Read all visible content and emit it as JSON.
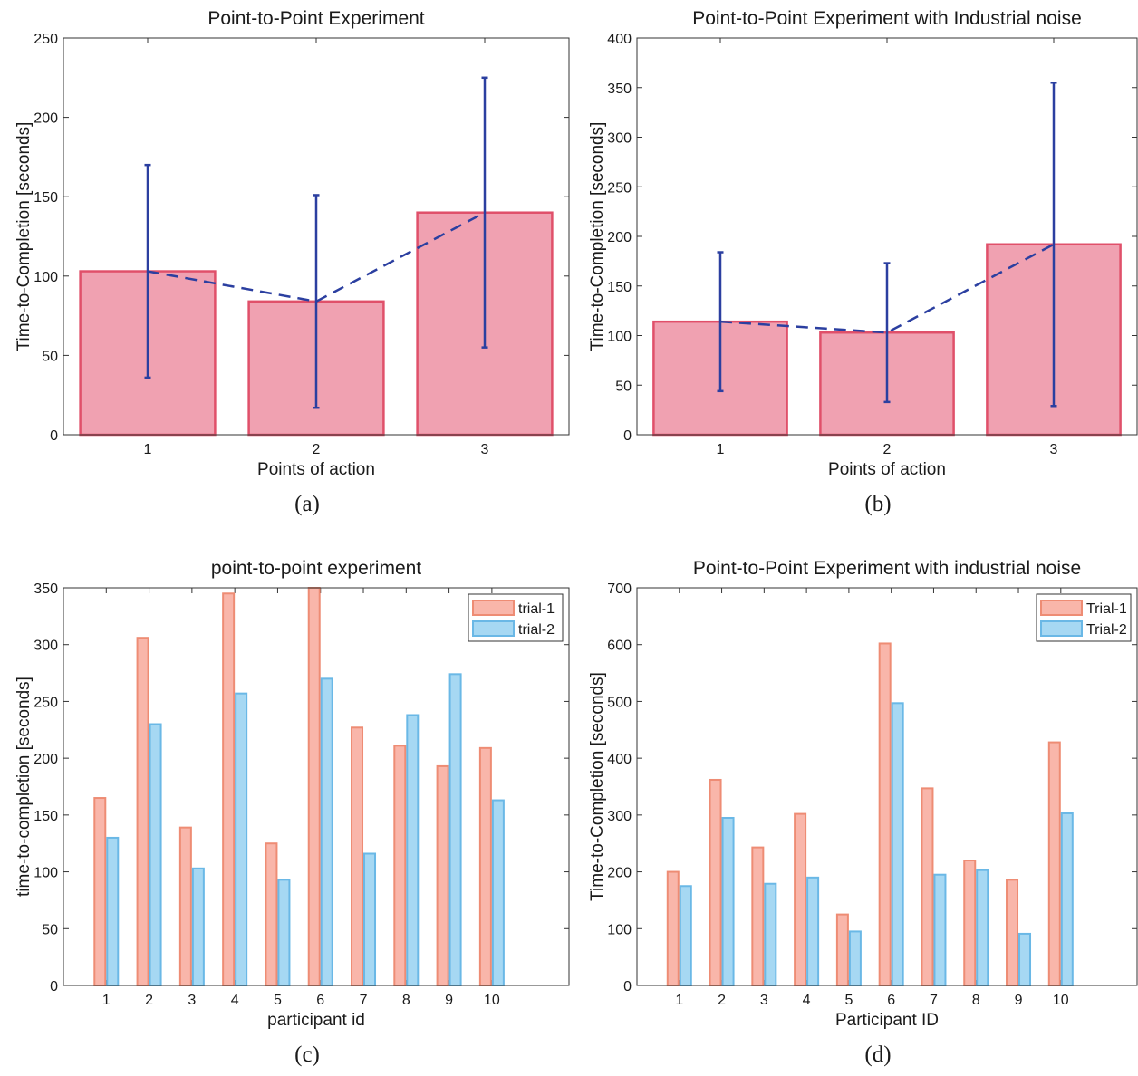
{
  "chart_data": [
    {
      "type": "bar",
      "panel": "(a)",
      "title": "Point-to-Point Experiment",
      "xlabel": "Points of action",
      "ylabel": "Time-to-Completion [seconds]",
      "categories": [
        "1",
        "2",
        "3"
      ],
      "values": [
        103,
        84,
        140
      ],
      "error_low": [
        36,
        17,
        55
      ],
      "error_high": [
        170,
        151,
        225
      ],
      "mean_line": true,
      "ylim": [
        0,
        250
      ],
      "yticks": [
        0,
        50,
        100,
        150,
        200,
        250
      ],
      "bar_color": "#f0a1b1",
      "bar_edge": "#e0506a",
      "error_color": "#2b3fa0"
    },
    {
      "type": "bar",
      "panel": "(b)",
      "title": "Point-to-Point Experiment with Industrial noise",
      "xlabel": "Points of action",
      "ylabel": "Time-to-Completion [seconds]",
      "categories": [
        "1",
        "2",
        "3"
      ],
      "values": [
        114,
        103,
        192
      ],
      "error_low": [
        44,
        33,
        29
      ],
      "error_high": [
        184,
        173,
        355
      ],
      "mean_line": true,
      "ylim": [
        0,
        400
      ],
      "yticks": [
        0,
        50,
        100,
        150,
        200,
        250,
        300,
        350,
        400
      ],
      "bar_color": "#f0a1b1",
      "bar_edge": "#e0506a",
      "error_color": "#2b3fa0"
    },
    {
      "type": "bar",
      "panel": "(c)",
      "title": "point-to-point experiment",
      "xlabel": "participant id",
      "ylabel": "time-to-completion [seconds]",
      "categories": [
        "1",
        "2",
        "3",
        "4",
        "5",
        "6",
        "7",
        "8",
        "9",
        "10"
      ],
      "series": [
        {
          "name": "trial-1",
          "values": [
            165,
            306,
            139,
            345,
            125,
            350,
            227,
            211,
            193,
            209
          ]
        },
        {
          "name": "trial-2",
          "values": [
            130,
            230,
            103,
            257,
            93,
            270,
            116,
            238,
            274,
            163
          ]
        }
      ],
      "ylim": [
        0,
        350
      ],
      "yticks": [
        0,
        50,
        100,
        150,
        200,
        250,
        300,
        350
      ],
      "legend": "top-right"
    },
    {
      "type": "bar",
      "panel": "(d)",
      "title": "Point-to-Point Experiment with industrial noise",
      "xlabel": "Participant ID",
      "ylabel": "Time-to-Completion [seconds]",
      "categories": [
        "1",
        "2",
        "3",
        "4",
        "5",
        "6",
        "7",
        "8",
        "9",
        "10"
      ],
      "series": [
        {
          "name": "Trial-1",
          "values": [
            200,
            362,
            243,
            302,
            125,
            602,
            347,
            220,
            186,
            428
          ]
        },
        {
          "name": "Trial-2",
          "values": [
            175,
            295,
            179,
            190,
            95,
            497,
            195,
            203,
            91,
            303
          ]
        }
      ],
      "ylim": [
        0,
        700
      ],
      "yticks": [
        0,
        100,
        200,
        300,
        400,
        500,
        600,
        700
      ],
      "legend": "top-right"
    }
  ],
  "colors": {
    "trial1_fill": "#f9b6aa",
    "trial1_edge": "#ee8c74",
    "trial2_fill": "#a6d8f3",
    "trial2_edge": "#6ab8e6"
  }
}
